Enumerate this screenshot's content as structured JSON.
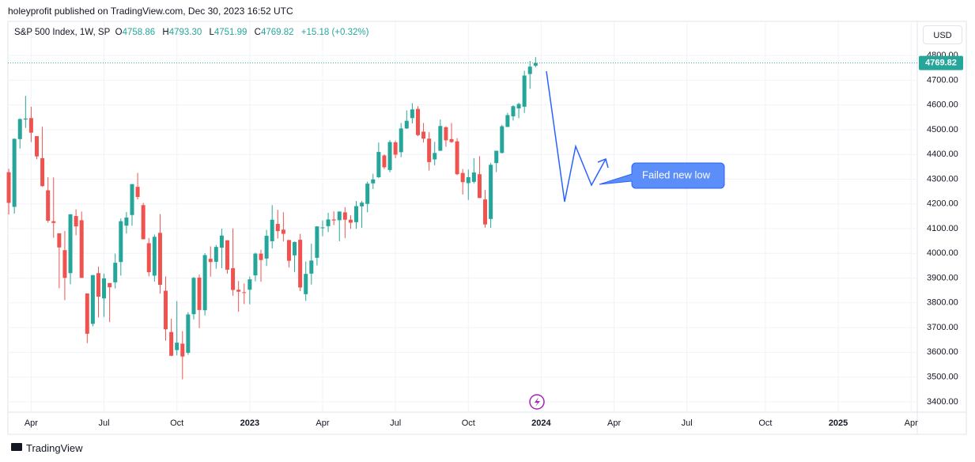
{
  "publisher_line": "holeyprofit published on TradingView.com, Dec 30, 2023 16:52 UTC",
  "brand": "TradingView",
  "chart_data": {
    "type": "candlestick",
    "legend": {
      "symbol": "S&P 500 Index, 1W, SP",
      "items": [
        {
          "key": "O",
          "value": "4758.86"
        },
        {
          "key": "H",
          "value": "4793.30"
        },
        {
          "key": "L",
          "value": "4751.99"
        },
        {
          "key": "C",
          "value": "4769.82"
        }
      ],
      "change": "+15.18 (+0.32%)"
    },
    "currency": "USD",
    "annotation": "Failed new low",
    "up_color": "#26a69a",
    "down_color": "#ef5350",
    "grid": true,
    "last_price": {
      "value": 4769.82,
      "label": "4769.82"
    },
    "candles": [
      [
        4328,
        4342,
        4157,
        4204
      ],
      [
        4188,
        4465,
        4161,
        4463
      ],
      [
        4462,
        4546,
        4424,
        4543
      ],
      [
        4541,
        4637,
        4507,
        4545
      ],
      [
        4547,
        4593,
        4450,
        4488
      ],
      [
        4474,
        4474,
        4381,
        4392
      ],
      [
        4385,
        4512,
        4269,
        4272
      ],
      [
        4255,
        4308,
        4124,
        4132
      ],
      [
        4130,
        4307,
        4063,
        4123
      ],
      [
        4081,
        4081,
        3859,
        4024
      ],
      [
        4013,
        4091,
        3811,
        3901
      ],
      [
        3920,
        4158,
        3875,
        4158
      ],
      [
        4151,
        4178,
        4073,
        4109
      ],
      [
        4134,
        4169,
        3901,
        3901
      ],
      [
        3838,
        3838,
        3637,
        3675
      ],
      [
        3715,
        3913,
        3705,
        3912
      ],
      [
        3920,
        3946,
        3741,
        3825
      ],
      [
        3818,
        3918,
        3743,
        3899
      ],
      [
        3880,
        3880,
        3722,
        3863
      ],
      [
        3883,
        3999,
        3858,
        3962
      ],
      [
        3965,
        4141,
        3910,
        4130
      ],
      [
        4112,
        4167,
        4080,
        4145
      ],
      [
        4155,
        4280,
        4112,
        4280
      ],
      [
        4269,
        4325,
        4218,
        4228
      ],
      [
        4195,
        4204,
        4057,
        4057
      ],
      [
        4041,
        4062,
        3907,
        3924
      ],
      [
        3910,
        4076,
        3886,
        4067
      ],
      [
        4083,
        4159,
        3837,
        3873
      ],
      [
        3849,
        3907,
        3647,
        3693
      ],
      [
        3682,
        3736,
        3584,
        3586
      ],
      [
        3609,
        3807,
        3588,
        3639
      ],
      [
        3635,
        3685,
        3491,
        3583
      ],
      [
        3598,
        3762,
        3590,
        3753
      ],
      [
        3754,
        3905,
        3733,
        3901
      ],
      [
        3902,
        3915,
        3698,
        3771
      ],
      [
        3770,
        4001,
        3749,
        3993
      ],
      [
        3978,
        4028,
        3906,
        3965
      ],
      [
        3966,
        4034,
        3938,
        4026
      ],
      [
        4023,
        4100,
        3940,
        4072
      ],
      [
        4053,
        4053,
        3918,
        3934
      ],
      [
        3940,
        4101,
        3828,
        3852
      ],
      [
        3853,
        3888,
        3764,
        3845
      ],
      [
        3843,
        3878,
        3795,
        3840
      ],
      [
        3853,
        3906,
        3794,
        3895
      ],
      [
        3911,
        4003,
        3887,
        3999
      ],
      [
        3999,
        4015,
        3885,
        3973
      ],
      [
        3979,
        4095,
        3949,
        4071
      ],
      [
        4049,
        4195,
        4020,
        4136
      ],
      [
        4119,
        4176,
        4060,
        4090
      ],
      [
        4096,
        4166,
        4048,
        4079
      ],
      [
        4054,
        4054,
        3943,
        3970
      ],
      [
        3992,
        4048,
        3925,
        4046
      ],
      [
        4055,
        4079,
        3847,
        3862
      ],
      [
        3835,
        3967,
        3808,
        3917
      ],
      [
        3918,
        4039,
        3874,
        3971
      ],
      [
        3982,
        4110,
        3951,
        4109
      ],
      [
        4102,
        4133,
        4069,
        4105
      ],
      [
        4110,
        4164,
        4086,
        4137
      ],
      [
        4137,
        4170,
        4114,
        4133
      ],
      [
        4134,
        4170,
        4049,
        4169
      ],
      [
        4166,
        4187,
        4062,
        4136
      ],
      [
        4136,
        4154,
        4099,
        4124
      ],
      [
        4126,
        4212,
        4099,
        4191
      ],
      [
        4190,
        4212,
        4103,
        4205
      ],
      [
        4200,
        4290,
        4166,
        4282
      ],
      [
        4283,
        4322,
        4260,
        4299
      ],
      [
        4308,
        4448,
        4305,
        4410
      ],
      [
        4396,
        4400,
        4341,
        4348
      ],
      [
        4337,
        4458,
        4328,
        4450
      ],
      [
        4449,
        4456,
        4385,
        4399
      ],
      [
        4409,
        4527,
        4389,
        4505
      ],
      [
        4505,
        4578,
        4503,
        4536
      ],
      [
        4547,
        4607,
        4525,
        4582
      ],
      [
        4584,
        4595,
        4474,
        4478
      ],
      [
        4492,
        4527,
        4448,
        4464
      ],
      [
        4464,
        4490,
        4335,
        4369
      ],
      [
        4380,
        4451,
        4356,
        4406
      ],
      [
        4415,
        4541,
        4414,
        4515
      ],
      [
        4510,
        4514,
        4431,
        4457
      ],
      [
        4462,
        4527,
        4447,
        4450
      ],
      [
        4453,
        4466,
        4316,
        4320
      ],
      [
        4325,
        4341,
        4238,
        4288
      ],
      [
        4284,
        4339,
        4216,
        4308
      ],
      [
        4289,
        4385,
        4283,
        4327
      ],
      [
        4320,
        4393,
        4223,
        4224
      ],
      [
        4218,
        4256,
        4104,
        4117
      ],
      [
        4139,
        4366,
        4103,
        4358
      ],
      [
        4365,
        4415,
        4329,
        4415
      ],
      [
        4406,
        4520,
        4404,
        4514
      ],
      [
        4511,
        4568,
        4511,
        4559
      ],
      [
        4554,
        4599,
        4537,
        4595
      ],
      [
        4586,
        4609,
        4546,
        4604
      ],
      [
        4593,
        4738,
        4568,
        4719
      ],
      [
        4725,
        4778,
        4665,
        4755
      ],
      [
        4758.86,
        4793.3,
        4751.99,
        4769.82
      ]
    ],
    "xlim": [
      -0.15,
      162.1
    ],
    "xticks": [
      {
        "value": 4,
        "label": "Apr"
      },
      {
        "value": 17,
        "label": "Jul"
      },
      {
        "value": 30,
        "label": "Oct"
      },
      {
        "value": 43,
        "label": "2023"
      },
      {
        "value": 56,
        "label": "Apr"
      },
      {
        "value": 69,
        "label": "Jul"
      },
      {
        "value": 82,
        "label": "Oct"
      },
      {
        "value": 95,
        "label": "2024"
      },
      {
        "value": 108,
        "label": "Apr"
      },
      {
        "value": 121,
        "label": "Jul"
      },
      {
        "value": 135,
        "label": "Oct"
      },
      {
        "value": 148,
        "label": "2025"
      },
      {
        "value": 161,
        "label": "Apr"
      }
    ],
    "ylim": [
      3358,
      4938
    ],
    "yticks": [
      {
        "value": 3400,
        "label": "3400.00"
      },
      {
        "value": 3500,
        "label": "3500.00"
      },
      {
        "value": 3600,
        "label": "3600.00"
      },
      {
        "value": 3700,
        "label": "3700.00"
      },
      {
        "value": 3800,
        "label": "3800.00"
      },
      {
        "value": 3900,
        "label": "3900.00"
      },
      {
        "value": 4000,
        "label": "4000.00"
      },
      {
        "value": 4100,
        "label": "4100.00"
      },
      {
        "value": 4200,
        "label": "4200.00"
      },
      {
        "value": 4300,
        "label": "4300.00"
      },
      {
        "value": 4400,
        "label": "4400.00"
      },
      {
        "value": 4500,
        "label": "4500.00"
      },
      {
        "value": 4600,
        "label": "4600.00"
      },
      {
        "value": 4700,
        "label": "4700.00"
      },
      {
        "value": 4800,
        "label": "4800.00"
      }
    ]
  }
}
